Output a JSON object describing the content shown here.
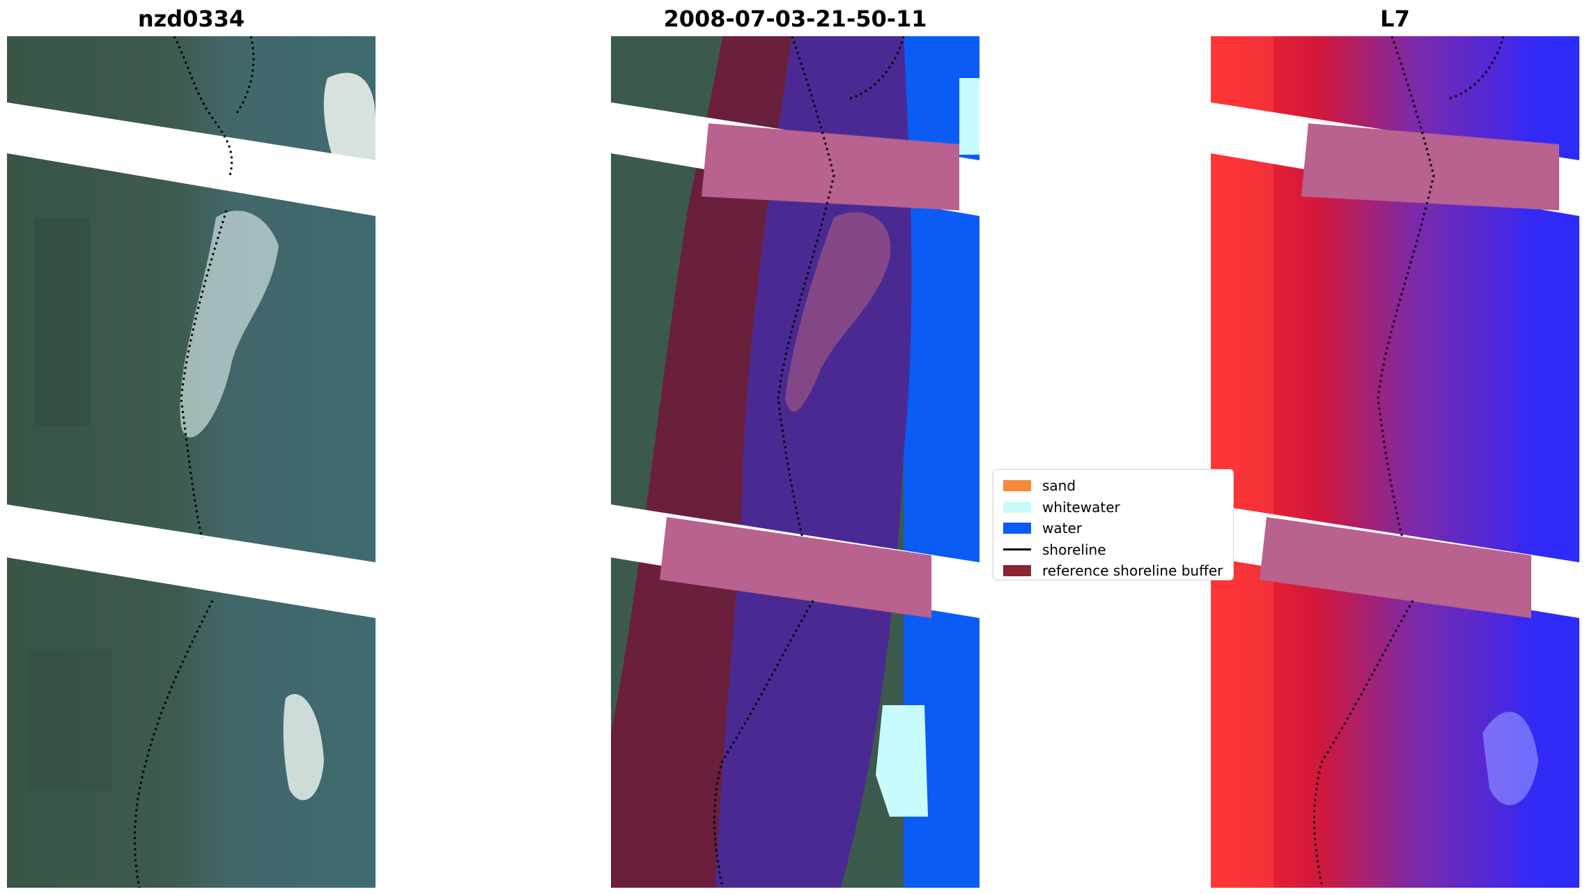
{
  "panels": [
    {
      "title": "nzd0334"
    },
    {
      "title": "2008-07-03-21-50-11"
    },
    {
      "title": "L7"
    }
  ],
  "legend": {
    "items": [
      {
        "label": "sand",
        "color": "#f58a3a",
        "kind": "patch"
      },
      {
        "label": "whitewater",
        "color": "#c8fbfb",
        "kind": "patch"
      },
      {
        "label": "water",
        "color": "#0a5cf5",
        "kind": "patch"
      },
      {
        "label": "shoreline",
        "color": "#000000",
        "kind": "line"
      },
      {
        "label": "reference shoreline buffer",
        "color": "#8b2332",
        "kind": "patch"
      }
    ]
  },
  "colors": {
    "land_rgb": "#3b5a4b",
    "water_rgb": "#3f6a6e",
    "classified_land": "#6a1f3c",
    "classified_water": "#4a2a92",
    "water_class": "#0a5cf5",
    "buffer_overlay": "#b9618f",
    "index_land": "#d0183c",
    "index_water": "#3a22e8"
  }
}
